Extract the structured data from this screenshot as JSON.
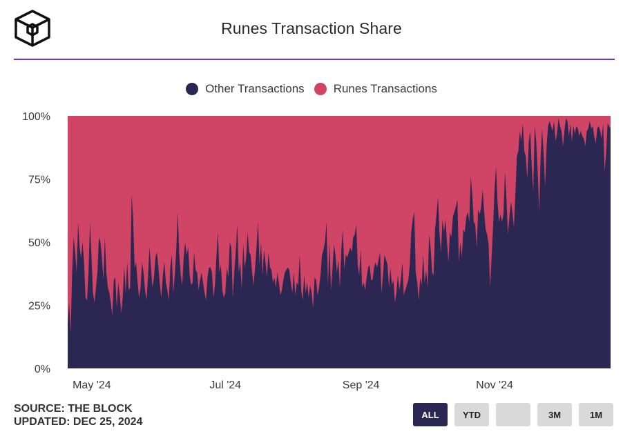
{
  "header": {
    "title": "Runes Transaction Share"
  },
  "legend": [
    {
      "name": "Other Transactions",
      "color": "#2b2752"
    },
    {
      "name": "Runes Transactions",
      "color": "#d04465"
    }
  ],
  "footer": {
    "source": "SOURCE: THE BLOCK",
    "updated": "UPDATED: DEC 25, 2024"
  },
  "range_buttons": [
    {
      "label": "ALL",
      "active": true
    },
    {
      "label": "YTD",
      "active": false
    },
    {
      "label": "",
      "active": false
    },
    {
      "label": "3M",
      "active": false
    },
    {
      "label": "1M",
      "active": false
    }
  ],
  "chart_data": {
    "type": "area",
    "stacked": true,
    "normalized": true,
    "x_start": "2024-04-20",
    "x_end": "2024-12-24",
    "x_ticks": [
      {
        "label": "May '24",
        "date": "2024-05-01"
      },
      {
        "label": "Jul '24",
        "date": "2024-07-01"
      },
      {
        "label": "Sep '24",
        "date": "2024-09-01"
      },
      {
        "label": "Nov '24",
        "date": "2024-11-01"
      }
    ],
    "y_ticks": [
      "0%",
      "25%",
      "50%",
      "75%",
      "100%"
    ],
    "ylim": [
      0,
      100
    ],
    "series": [
      {
        "name": "Other Transactions",
        "color": "#2b2752",
        "values": [
          18,
          26,
          14,
          38,
          52,
          46,
          38,
          58,
          48,
          44,
          50,
          42,
          28,
          27,
          38,
          58,
          44,
          30,
          26,
          32,
          38,
          52,
          50,
          44,
          35,
          52,
          38,
          32,
          30,
          26,
          21,
          35,
          36,
          24,
          34,
          29,
          22,
          28,
          40,
          30,
          42,
          31,
          32,
          69,
          59,
          40,
          42,
          34,
          28,
          32,
          42,
          38,
          31,
          27,
          36,
          48,
          40,
          32,
          36,
          44,
          46,
          40,
          33,
          28,
          37,
          42,
          34,
          31,
          27,
          40,
          45,
          30,
          37,
          47,
          62,
          45,
          37,
          33,
          44,
          50,
          45,
          48,
          37,
          33,
          34,
          46,
          39,
          38,
          31,
          35,
          38,
          34,
          30,
          27,
          36,
          40,
          40,
          38,
          28,
          33,
          44,
          54,
          38,
          41,
          31,
          28,
          30,
          40,
          36,
          50,
          48,
          28,
          38,
          46,
          57,
          38,
          42,
          31,
          49,
          40,
          44,
          54,
          46,
          45,
          38,
          33,
          40,
          48,
          58,
          41,
          50,
          37,
          47,
          42,
          36,
          46,
          40,
          39,
          34,
          36,
          32,
          38,
          34,
          29,
          31,
          35,
          38,
          39,
          40,
          39,
          34,
          30,
          38,
          29,
          34,
          33,
          45,
          31,
          27,
          37,
          30,
          34,
          28,
          33,
          30,
          24,
          36,
          35,
          29,
          32,
          37,
          45,
          47,
          50,
          58,
          33,
          50,
          31,
          39,
          49,
          45,
          38,
          43,
          32,
          47,
          55,
          39,
          45,
          44,
          46,
          48,
          46,
          52,
          53,
          57,
          41,
          37,
          47,
          32,
          34,
          31,
          36,
          40,
          41,
          35,
          35,
          40,
          42,
          40,
          43,
          46,
          30,
          37,
          45,
          43,
          41,
          32,
          40,
          33,
          35,
          26,
          30,
          37,
          31,
          35,
          42,
          29,
          31,
          33,
          35,
          41,
          54,
          59,
          62,
          38,
          34,
          27,
          36,
          33,
          45,
          34,
          39,
          32,
          53,
          48,
          38,
          37,
          55,
          61,
          68,
          53,
          46,
          59,
          54,
          59,
          50,
          42,
          54,
          52,
          60,
          62,
          64,
          67,
          42,
          50,
          44,
          55,
          54,
          60,
          62,
          58,
          76,
          69,
          58,
          57,
          48,
          63,
          61,
          64,
          71,
          62,
          55,
          53,
          49,
          32,
          44,
          56,
          71,
          80,
          66,
          58,
          61,
          58,
          61,
          78,
          67,
          53,
          60,
          66,
          62,
          56,
          69,
          84,
          86,
          94,
          90,
          97,
          86,
          84,
          75,
          90,
          94,
          80,
          70,
          96,
          90,
          78,
          62,
          84,
          95,
          85,
          72,
          88,
          96,
          98,
          96,
          94,
          98,
          90,
          93,
          99,
          96,
          94,
          88,
          94,
          99,
          98,
          92,
          97,
          90,
          96,
          93,
          96,
          95,
          92,
          94,
          92,
          91,
          88,
          94,
          95,
          98,
          95,
          96,
          92,
          89,
          95,
          96,
          94,
          91,
          97,
          78,
          85,
          97,
          96,
          95
        ]
      },
      {
        "name": "Runes Transactions",
        "color": "#d04465",
        "complement_of": "Other Transactions"
      }
    ]
  }
}
